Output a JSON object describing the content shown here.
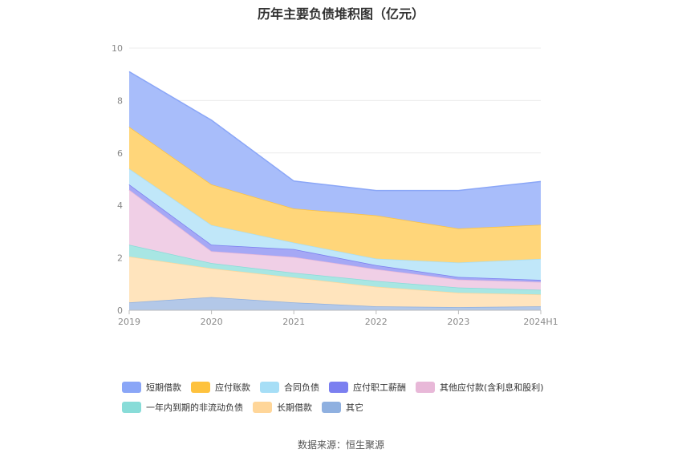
{
  "source_text": "数据来源：恒生聚源",
  "chart_data": {
    "type": "area",
    "stacked": true,
    "title": "历年主要负债堆积图（亿元）",
    "xlabel": "",
    "ylabel": "",
    "categories": [
      "2019",
      "2020",
      "2021",
      "2022",
      "2023",
      "2024H1"
    ],
    "ylim": [
      0,
      10
    ],
    "yticks": [
      0,
      2,
      4,
      6,
      8,
      10
    ],
    "grid": true,
    "legend_position": "bottom",
    "series": [
      {
        "name": "其它",
        "color": "#8fb0e0",
        "fill": "#b3c8e8",
        "values": [
          0.3,
          0.5,
          0.3,
          0.15,
          0.12,
          0.15
        ]
      },
      {
        "name": "长期借款",
        "color": "#ffd699",
        "fill": "#ffe4bd",
        "values": [
          1.75,
          1.1,
          0.95,
          0.75,
          0.55,
          0.45
        ]
      },
      {
        "name": "一年内到期的非流动负债",
        "color": "#88dcd8",
        "fill": "#a8e6e3",
        "values": [
          0.45,
          0.2,
          0.18,
          0.22,
          0.2,
          0.18
        ]
      },
      {
        "name": "其他应付款(含利息和股利)",
        "color": "#e8b8d8",
        "fill": "#f0cfe6",
        "values": [
          2.1,
          0.45,
          0.6,
          0.45,
          0.3,
          0.3
        ]
      },
      {
        "name": "应付职工薪酬",
        "color": "#7b7ff0",
        "fill": "#a5a8f5",
        "values": [
          0.2,
          0.25,
          0.3,
          0.15,
          0.1,
          0.08
        ]
      },
      {
        "name": "合同负债",
        "color": "#a6def6",
        "fill": "#c0e7f9",
        "values": [
          0.6,
          0.75,
          0.25,
          0.25,
          0.55,
          0.8
        ]
      },
      {
        "name": "应付账款",
        "color": "#fec23e",
        "fill": "#ffd67a",
        "values": [
          1.6,
          1.55,
          1.3,
          1.65,
          1.3,
          1.3
        ]
      },
      {
        "name": "短期借款",
        "color": "#8aa6f7",
        "fill": "#a8bdfa",
        "values": [
          2.1,
          2.45,
          1.05,
          0.95,
          1.45,
          1.65
        ]
      }
    ]
  }
}
